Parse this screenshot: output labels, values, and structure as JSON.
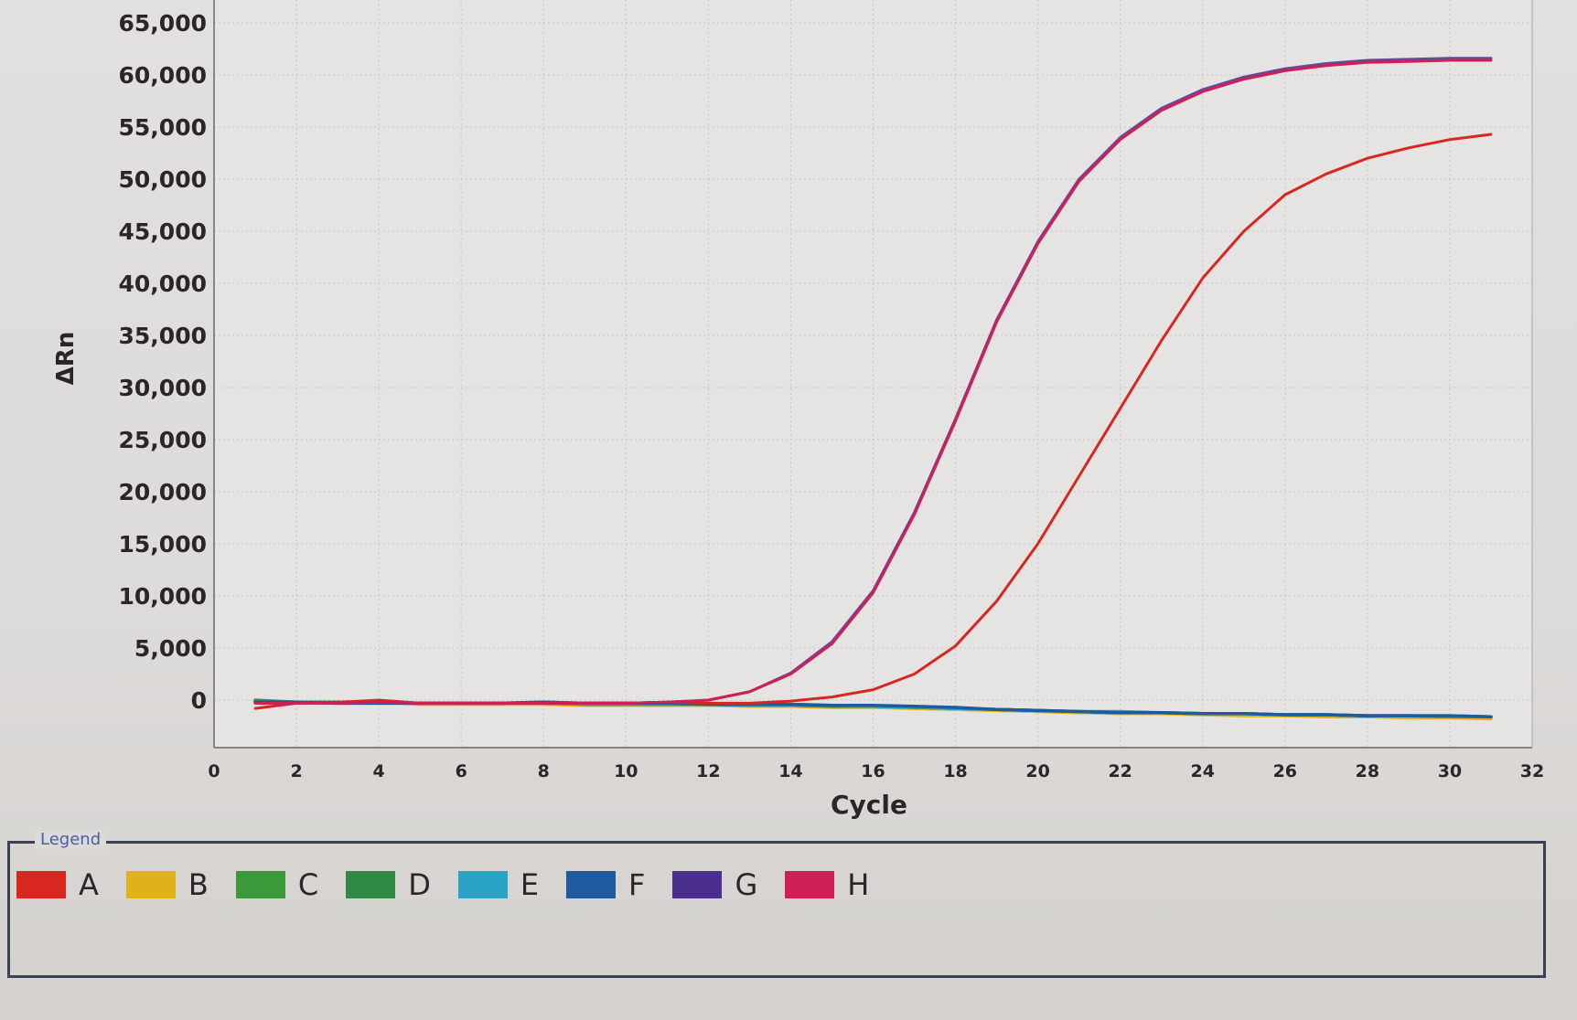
{
  "chart_data": {
    "type": "line",
    "xlabel": "Cycle",
    "ylabel": "ΔRn",
    "xlim": [
      0,
      32
    ],
    "ylim": [
      -4500,
      67000
    ],
    "x_ticks": [
      "0",
      "2",
      "4",
      "6",
      "8",
      "10",
      "12",
      "14",
      "16",
      "18",
      "20",
      "22",
      "24",
      "26",
      "28",
      "30",
      "32"
    ],
    "y_ticks": [
      "0",
      "5,000",
      "10,000",
      "15,000",
      "20,000",
      "25,000",
      "30,000",
      "35,000",
      "40,000",
      "45,000",
      "50,000",
      "55,000",
      "60,000",
      "65,000"
    ],
    "grid": true,
    "legend_title": "Legend",
    "legend_position": "bottom",
    "x": [
      1,
      2,
      3,
      4,
      5,
      6,
      7,
      8,
      9,
      10,
      11,
      12,
      13,
      14,
      15,
      16,
      17,
      18,
      19,
      20,
      21,
      22,
      23,
      24,
      25,
      26,
      27,
      28,
      29,
      30,
      31
    ],
    "series": [
      {
        "name": "A",
        "color": "#d8271f",
        "values": [
          -800,
          -300,
          -200,
          0,
          -300,
          -300,
          -300,
          -300,
          -300,
          -300,
          -200,
          -300,
          -300,
          -100,
          300,
          1000,
          2500,
          5200,
          9500,
          15000,
          21500,
          28000,
          34500,
          40500,
          45000,
          48500,
          50500,
          52000,
          53000,
          53800,
          54300
        ]
      },
      {
        "name": "B",
        "color": "#e0b21a",
        "values": [
          -100,
          -200,
          -300,
          -200,
          -400,
          -400,
          -400,
          -400,
          -500,
          -500,
          -500,
          -500,
          -600,
          -600,
          -700,
          -700,
          -800,
          -900,
          -1000,
          -1100,
          -1200,
          -1300,
          -1300,
          -1400,
          -1500,
          -1500,
          -1600,
          -1600,
          -1700,
          -1700,
          -1800
        ]
      },
      {
        "name": "C",
        "color": "#3a9a3a",
        "values": [
          0,
          -200,
          -200,
          -200,
          -300,
          -300,
          -300,
          -300,
          -400,
          -400,
          -400,
          -400,
          -500,
          -500,
          -600,
          -600,
          -700,
          -800,
          -900,
          -1000,
          -1100,
          -1200,
          -1200,
          -1300,
          -1300,
          -1400,
          -1400,
          -1500,
          -1500,
          -1500,
          -1600
        ]
      },
      {
        "name": "D",
        "color": "#2f8a44",
        "values": [
          -100,
          -200,
          -200,
          -200,
          -300,
          -300,
          -300,
          -200,
          -300,
          -300,
          -300,
          -400,
          -400,
          -400,
          -500,
          -600,
          -700,
          -800,
          -900,
          -1000,
          -1100,
          -1200,
          -1200,
          -1300,
          -1300,
          -1400,
          -1400,
          -1500,
          -1500,
          -1600,
          -1600
        ]
      },
      {
        "name": "E",
        "color": "#2aa3c4",
        "values": [
          -200,
          -200,
          -300,
          -300,
          -300,
          -300,
          -300,
          -300,
          -400,
          -400,
          -400,
          -400,
          -500,
          -500,
          -500,
          -600,
          -700,
          -800,
          -900,
          -1000,
          -1100,
          -1100,
          -1200,
          -1300,
          -1300,
          -1400,
          -1400,
          -1500,
          -1500,
          -1600,
          -1600
        ]
      },
      {
        "name": "F",
        "color": "#1f5aa0",
        "values": [
          -200,
          -200,
          -300,
          -300,
          -300,
          -300,
          -300,
          -200,
          -300,
          -300,
          -300,
          -400,
          -400,
          -400,
          -500,
          -500,
          -600,
          -700,
          -900,
          -1000,
          -1100,
          -1200,
          -1200,
          -1300,
          -1300,
          -1400,
          -1400,
          -1500,
          -1500,
          -1500,
          -1600
        ]
      },
      {
        "name": "G",
        "color": "#4a2f8f",
        "values": [
          -300,
          -300,
          -300,
          -200,
          -300,
          -300,
          -300,
          -300,
          -300,
          -300,
          -200,
          0,
          800,
          2600,
          5600,
          10500,
          18000,
          27000,
          36500,
          44000,
          50000,
          54000,
          56800,
          58600,
          59800,
          60600,
          61100,
          61400,
          61500,
          61600,
          61600
        ]
      },
      {
        "name": "H",
        "color": "#cf1f55",
        "values": [
          -300,
          -300,
          -300,
          -200,
          -300,
          -300,
          -300,
          -300,
          -300,
          -300,
          -200,
          0,
          800,
          2500,
          5400,
          10300,
          17800,
          26800,
          36300,
          43800,
          49800,
          53800,
          56600,
          58400,
          59600,
          60400,
          60900,
          61200,
          61300,
          61400,
          61400
        ]
      }
    ]
  }
}
